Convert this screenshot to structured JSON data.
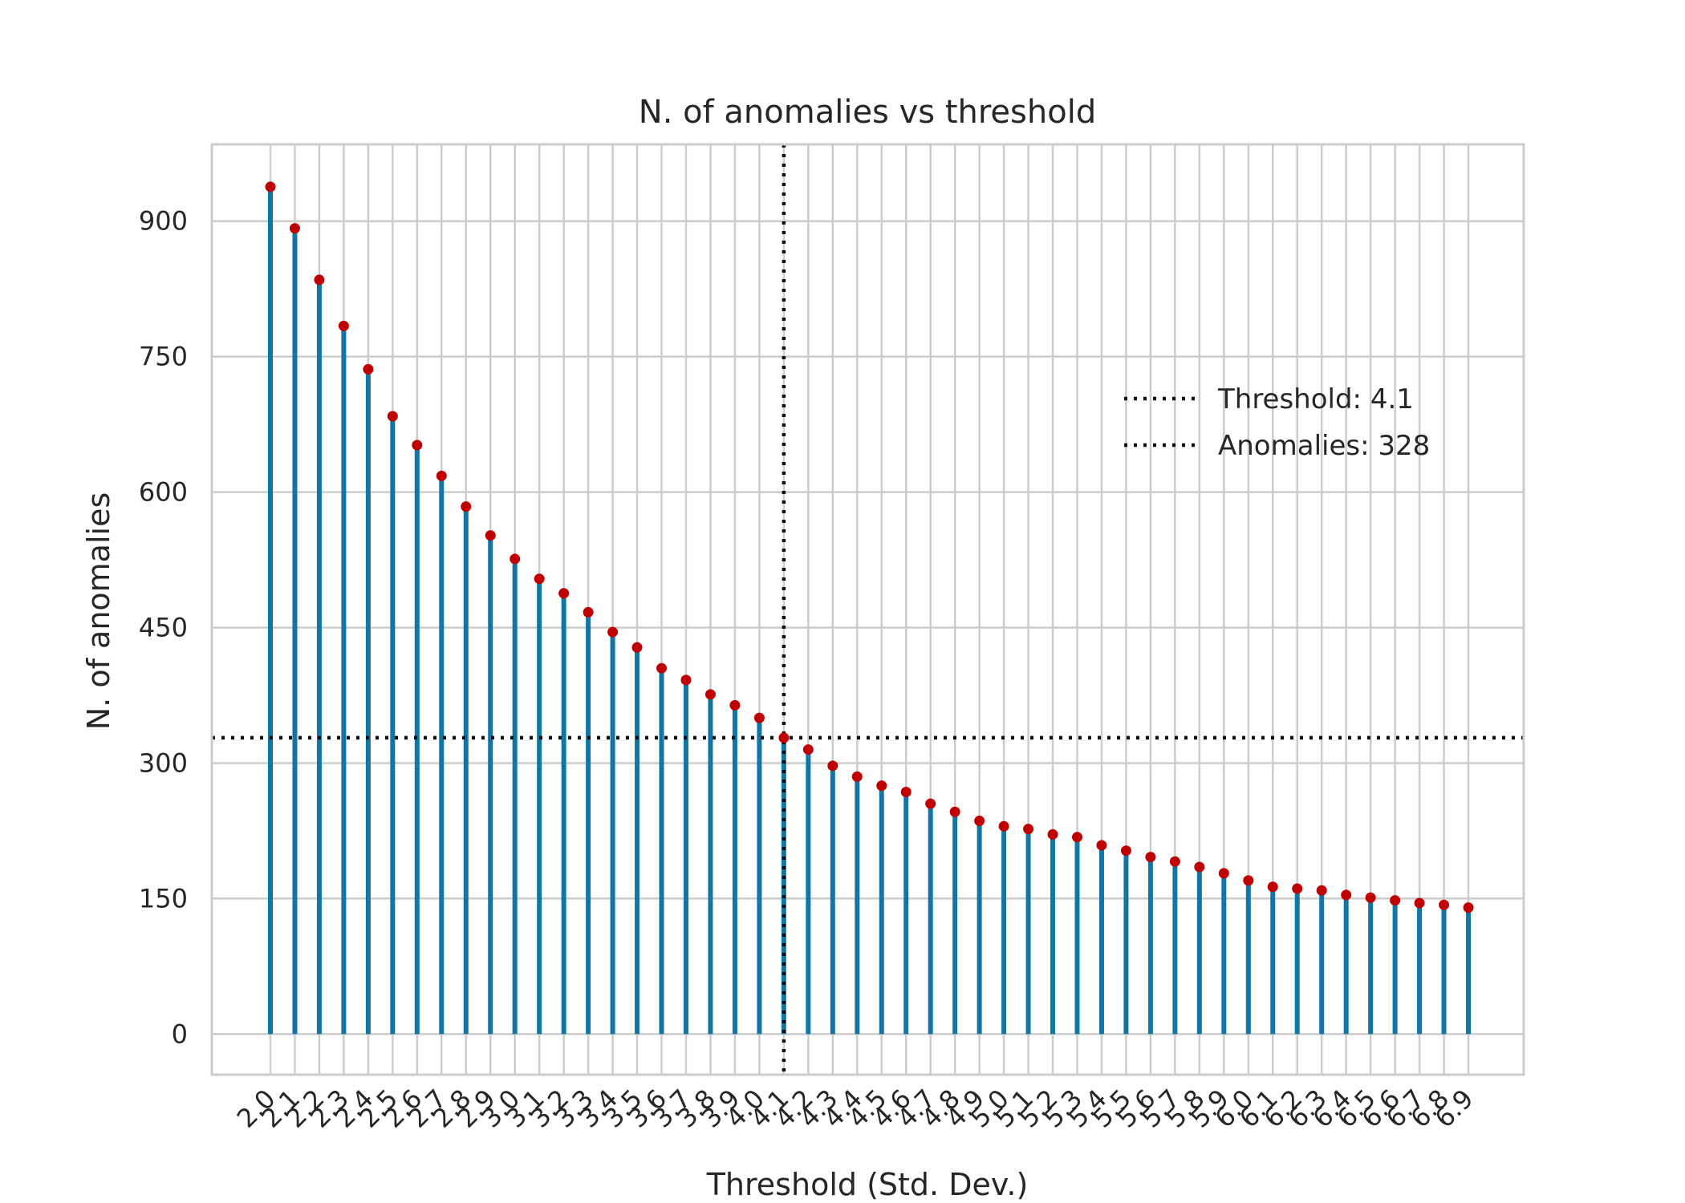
{
  "chart_data": {
    "type": "stem",
    "title": "N. of anomalies vs threshold",
    "xlabel": "Threshold (Std. Dev.)",
    "ylabel": "N. of anomalies",
    "x": [
      2.0,
      2.1,
      2.2,
      2.3,
      2.4,
      2.5,
      2.6,
      2.7,
      2.8,
      2.9,
      3.0,
      3.1,
      3.2,
      3.3,
      3.4,
      3.5,
      3.6,
      3.7,
      3.8,
      3.9,
      4.0,
      4.1,
      4.2,
      4.3,
      4.4,
      4.5,
      4.6,
      4.7,
      4.8,
      4.9,
      5.0,
      5.1,
      5.2,
      5.3,
      5.4,
      5.5,
      5.6,
      5.7,
      5.8,
      5.9,
      6.0,
      6.1,
      6.2,
      6.3,
      6.4,
      6.5,
      6.6,
      6.7,
      6.8,
      6.9
    ],
    "x_tick_labels": [
      "2.0",
      "2.1",
      "2.2",
      "2.3",
      "2.4",
      "2.5",
      "2.6",
      "2.7",
      "2.8",
      "2.9",
      "3.0",
      "3.1",
      "3.2",
      "3.3",
      "3.4",
      "3.5",
      "3.6",
      "3.7",
      "3.8",
      "3.9",
      "4.0",
      "4.1",
      "4.2",
      "4.3",
      "4.4",
      "4.5",
      "4.6",
      "4.7",
      "4.8",
      "4.9",
      "5.0",
      "5.1",
      "5.2",
      "5.3",
      "5.4",
      "5.5",
      "5.6",
      "5.7",
      "5.8",
      "5.9",
      "6.0",
      "6.1",
      "6.2",
      "6.3",
      "6.4",
      "6.5",
      "6.6",
      "6.7",
      "6.8",
      "6.9"
    ],
    "values": [
      938,
      892,
      835,
      784,
      736,
      684,
      652,
      618,
      584,
      552,
      526,
      504,
      488,
      467,
      445,
      428,
      405,
      392,
      376,
      364,
      350,
      328,
      315,
      297,
      285,
      275,
      268,
      255,
      246,
      236,
      230,
      227,
      221,
      218,
      209,
      203,
      196,
      191,
      185,
      178,
      170,
      163,
      161,
      159,
      154,
      151,
      148,
      145,
      143,
      140
    ],
    "y_ticks": [
      0,
      150,
      300,
      450,
      600,
      750,
      900
    ],
    "ylim": [
      -45,
      985
    ],
    "grid": true,
    "threshold": {
      "x": 4.1,
      "y": 328
    },
    "legend": {
      "placement": "upper-right",
      "entries": [
        "Threshold: 4.1",
        "Anomalies: 328"
      ]
    },
    "colors": {
      "stem": "#0f77a8",
      "marker": "#c00000",
      "reference": "#111111",
      "grid": "#cccccc"
    }
  }
}
